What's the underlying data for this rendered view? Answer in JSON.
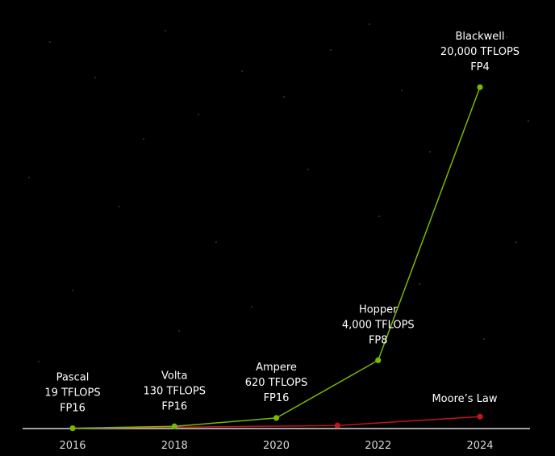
{
  "chart_data": {
    "type": "line",
    "title": "",
    "xlabel": "",
    "ylabel": "",
    "xlim": [
      2015,
      2025.0
    ],
    "ylim": [
      0,
      20000
    ],
    "x_ticks": [
      "2016",
      "2018",
      "2020",
      "2022",
      "2024"
    ],
    "grid": false,
    "legend": "none",
    "series": [
      {
        "name": "",
        "color": "#76b900",
        "points": [
          {
            "x": 2016,
            "y": 19,
            "label": [
              "Pascal",
              "19 TFLOPS",
              "FP16"
            ]
          },
          {
            "x": 2018,
            "y": 130,
            "label": [
              "Volta",
              "130 TFLOPS",
              "FP16"
            ]
          },
          {
            "x": 2020,
            "y": 620,
            "label": [
              "Ampere",
              "620 TFLOPS",
              "FP16"
            ]
          },
          {
            "x": 2022,
            "y": 4000,
            "label": [
              "Hopper",
              "4,000 TFLOPS",
              "FP8"
            ]
          },
          {
            "x": 2024,
            "y": 20000,
            "label": [
              "Blackwell",
              "20,000 TFLOPS",
              "FP4"
            ]
          }
        ]
      },
      {
        "name": "Moore's Law",
        "color": "#c0161c",
        "points": [
          {
            "x": 2016,
            "y": 19
          },
          {
            "x": 2021.2,
            "y": 180
          },
          {
            "x": 2024,
            "y": 700
          }
        ]
      }
    ],
    "annotations": [
      "Moore’s Law"
    ]
  }
}
